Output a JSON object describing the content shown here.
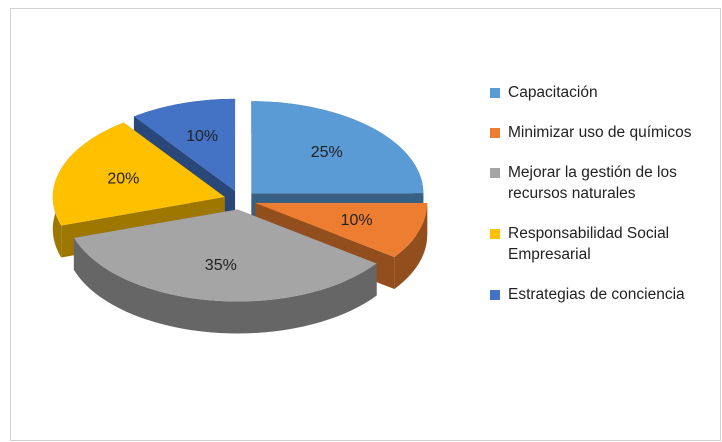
{
  "chart_data": {
    "type": "pie3d",
    "categories": [
      "Capacitación",
      "Minimizar uso de químicos",
      "Mejorar la gestión de los recursos naturales",
      "Responsabilidad Social Empresarial",
      "Estrategias de conciencia"
    ],
    "values": [
      25,
      10,
      35,
      20,
      10
    ],
    "value_labels": [
      "25%",
      "10%",
      "35%",
      "20%",
      "10%"
    ],
    "colors": [
      "#5b9bd5",
      "#ed7d31",
      "#a5a5a5",
      "#ffc000",
      "#4472c4"
    ],
    "legend": "right"
  }
}
